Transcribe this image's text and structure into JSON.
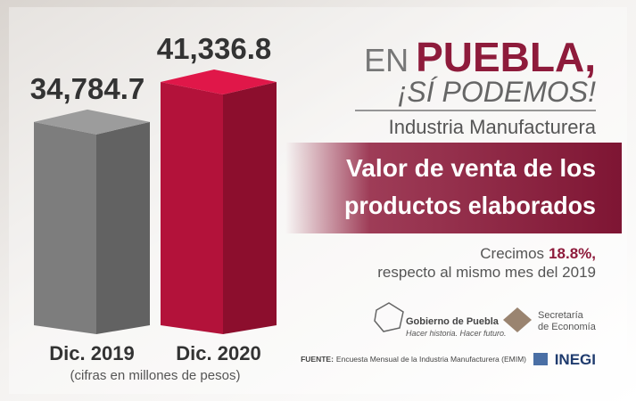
{
  "header": {
    "lead": "EN",
    "title": "PUEBLA,",
    "slogan": "¡SÍ PODEMOS!",
    "sector": "Industria Manufacturera"
  },
  "chart_data": {
    "type": "bar",
    "title": [
      "Valor de venta de los",
      "productos elaborados"
    ],
    "categories": [
      "Dic. 2019",
      "Dic. 2020"
    ],
    "values": [
      34784.7,
      41336.8
    ],
    "value_labels": [
      "34,784.7",
      "41,336.8"
    ],
    "colors": [
      "#7d7d7d",
      "#b3123a"
    ],
    "note": "(cifras en millones de pesos)"
  },
  "growth": {
    "lead": "Crecimos",
    "value": "18.8%,",
    "text": "respecto al mismo mes del 2019"
  },
  "logos": {
    "puebla": "Gobierno de Puebla",
    "puebla_motto": "Hacer historia. Hacer futuro.",
    "economia_1": "Secretaría",
    "economia_2": "de Economía",
    "inegi": "INEGI"
  },
  "source": {
    "label": "FUENTE:",
    "text": "Encuesta Mensual de la Industria Manufacturera (EMIM)"
  }
}
